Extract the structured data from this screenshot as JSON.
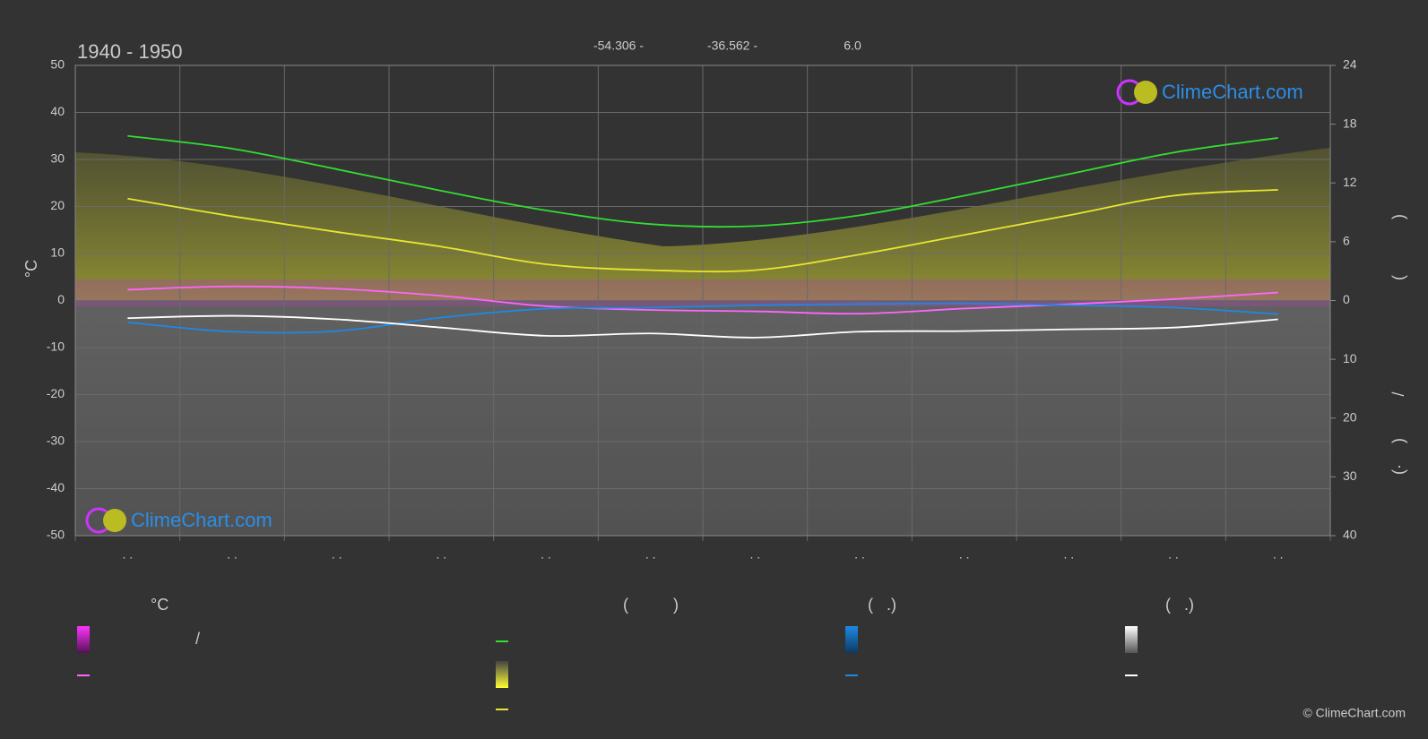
{
  "chart_data": {
    "type": "line",
    "title": "1940 - 1950",
    "subtitle_items": [
      "-54.306 -",
      "-36.562 -",
      "6.0"
    ],
    "ylabel": "°C",
    "y2label_parts": [
      ")",
      "(",
      "/",
      ")",
      "(·"
    ],
    "categories": [
      ". .",
      ". .",
      ". .",
      ". .",
      ". .",
      ". .",
      ". .",
      ". .",
      ". .",
      ". .",
      ". .",
      ". ."
    ],
    "ylim": [
      -50,
      50
    ],
    "yticks": [
      -50,
      -40,
      -30,
      -20,
      -10,
      0,
      10,
      20,
      30,
      40,
      50
    ],
    "y2lim": [
      0,
      24
    ],
    "y2ticks": [
      0,
      6,
      12,
      18,
      24
    ],
    "y3lim": [
      0,
      40
    ],
    "y3ticks": [
      10,
      20,
      30,
      40
    ],
    "grid": true,
    "series": [
      {
        "name": "",
        "color": "#33dd33",
        "axis": "y2",
        "values": [
          16.8,
          15.5,
          13.4,
          11.2,
          9.2,
          7.8,
          7.6,
          8.7,
          10.7,
          12.9,
          15.1,
          16.6
        ]
      },
      {
        "name": "",
        "color": "#e6e632",
        "axis": "y2",
        "values": [
          10.4,
          8.6,
          7.0,
          5.5,
          3.7,
          3.1,
          3.1,
          4.7,
          6.7,
          8.7,
          10.7,
          11.3
        ]
      },
      {
        "name": "",
        "color": "#ff66ff",
        "axis": "y",
        "values": [
          2.3,
          3.0,
          2.5,
          1.0,
          -1.2,
          -2.0,
          -2.3,
          -2.8,
          -1.7,
          -0.8,
          0.3,
          1.7
        ]
      },
      {
        "name": "",
        "color": "#1e88e5",
        "axis": "y3",
        "values": [
          3.7,
          5.3,
          5.2,
          2.9,
          1.4,
          1.2,
          0.8,
          0.6,
          0.5,
          0.8,
          1.2,
          2.3
        ]
      },
      {
        "name": "",
        "color": "#ffffff",
        "axis": "y3",
        "values": [
          3.0,
          2.6,
          3.2,
          4.6,
          6.0,
          5.6,
          6.3,
          5.3,
          5.2,
          4.9,
          4.6,
          3.2
        ]
      }
    ],
    "legend_headers": [
      "°C",
      "(          )",
      "(   .)",
      "(   .)"
    ],
    "legend_slash": "/",
    "watermark": "ClimeChart.com",
    "copyright": "© ClimeChart.com"
  }
}
